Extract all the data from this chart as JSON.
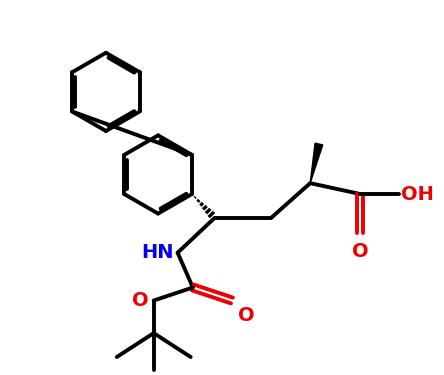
{
  "bg_color": "#ffffff",
  "bond_color": "#000000",
  "N_color": "#0000ee",
  "O_color": "#ee0000",
  "line_width": 2.8,
  "figsize": [
    4.44,
    3.75
  ],
  "dpi": 100,
  "xlim": [
    0,
    10
  ],
  "ylim": [
    0,
    8.5
  ]
}
